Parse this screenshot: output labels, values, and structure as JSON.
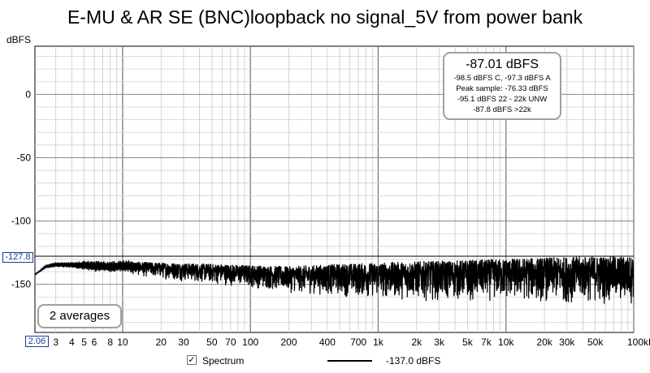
{
  "chart_data": {
    "type": "line",
    "title": "E-MU & AR SE (BNC)loopback no signal_5V from power bank",
    "ylabel": "dBFS",
    "xscale": "log",
    "xlim": [
      2.06,
      100000
    ],
    "ylim": [
      -188,
      38
    ],
    "x_tick_labels": [
      {
        "x": 3,
        "label": "3"
      },
      {
        "x": 4,
        "label": "4"
      },
      {
        "x": 5,
        "label": "5"
      },
      {
        "x": 6,
        "label": "6"
      },
      {
        "x": 8,
        "label": "8"
      },
      {
        "x": 10,
        "label": "10"
      },
      {
        "x": 20,
        "label": "20"
      },
      {
        "x": 30,
        "label": "30"
      },
      {
        "x": 50,
        "label": "50"
      },
      {
        "x": 70,
        "label": "70"
      },
      {
        "x": 100,
        "label": "100"
      },
      {
        "x": 200,
        "label": "200"
      },
      {
        "x": 400,
        "label": "400"
      },
      {
        "x": 700,
        "label": "700"
      },
      {
        "x": 1000,
        "label": "1k"
      },
      {
        "x": 2000,
        "label": "2k"
      },
      {
        "x": 3000,
        "label": "3k"
      },
      {
        "x": 5000,
        "label": "5k"
      },
      {
        "x": 7000,
        "label": "7k"
      },
      {
        "x": 10000,
        "label": "10k"
      },
      {
        "x": 20000,
        "label": "20k"
      },
      {
        "x": 30000,
        "label": "30k"
      },
      {
        "x": 50000,
        "label": "50k"
      },
      {
        "x": 100000,
        "label": "100kHz"
      }
    ],
    "y_tick_labels": [
      {
        "y": 0,
        "label": "0"
      },
      {
        "y": -50,
        "label": "-50"
      },
      {
        "y": -100,
        "label": "-100"
      },
      {
        "y": -150,
        "label": "-150"
      }
    ],
    "grid": true,
    "cursor_y": -127.8,
    "cursor_label": "-127.8",
    "x_start_label": "2.06",
    "series": [
      {
        "name": "Spectrum",
        "color": "#000000",
        "style": "noise spectrum",
        "x": [
          2.06,
          2.5,
          3,
          4,
          5,
          6,
          8,
          10,
          20,
          50,
          100,
          200,
          500,
          1000,
          2000,
          5000,
          10000,
          20000,
          50000,
          100000
        ],
        "y_upper": [
          -142,
          -135,
          -133,
          -133,
          -132,
          -132,
          -133,
          -132,
          -133,
          -134,
          -135,
          -136,
          -134,
          -133,
          -132,
          -131,
          -130,
          -129,
          -128,
          -128
        ],
        "y_lower": [
          -143,
          -138,
          -137,
          -138,
          -140,
          -142,
          -142,
          -142,
          -146,
          -150,
          -153,
          -157,
          -160,
          -162,
          -163,
          -164,
          -164,
          -165,
          -166,
          -167
        ]
      }
    ],
    "stats": {
      "main": "-87.01 dBFS",
      "lines": [
        "-98.5 dBFS C, -97.3 dBFS A",
        "Peak sample: -76.33 dBFS",
        "-95.1 dBFS 22 - 22k UNW",
        "-87.8 dBFS >22k"
      ]
    },
    "averages_label": "2 averages",
    "legend": {
      "checked": true,
      "check_glyph": "✓",
      "name": "Spectrum",
      "value": "-137.0 dBFS"
    }
  }
}
